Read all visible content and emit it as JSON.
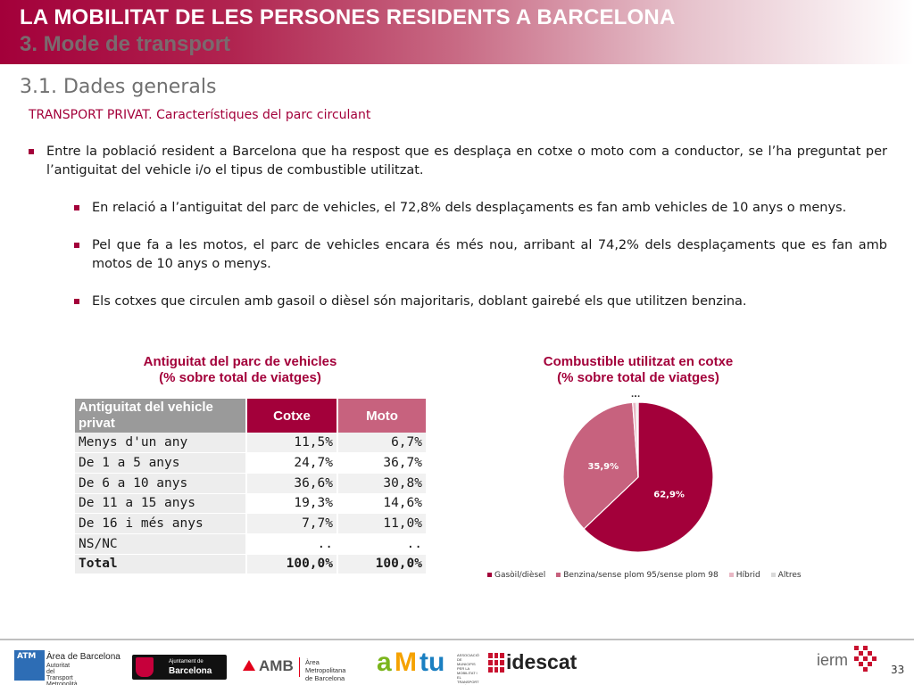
{
  "header": {
    "title": "LA MOBILITAT DE LES PERSONES RESIDENTS A BARCELONA",
    "subtitle": "3. Mode de transport"
  },
  "section": "3.1. Dades generals",
  "subsection": "TRANSPORT PRIVAT. Característiques del parc circulant",
  "bullets": {
    "main": "Entre la població resident a Barcelona que ha respost que es desplaça en cotxe o moto com a conductor, se l’ha preguntat per l’antiguitat del vehicle i/o el tipus de combustible utilitzat.",
    "sub": [
      "En relació a l’antiguitat del parc de vehicles, el 72,8% dels desplaçaments es fan amb vehicles de 10 anys o menys.",
      "Pel que fa a les motos, el parc de vehicles encara és més nou, arribant al 74,2% dels desplaçaments que es fan amb motos de 10 anys o menys.",
      "Els cotxes que circulen amb gasoil o dièsel són majoritaris, doblant gairebé els que utilitzen benzina."
    ]
  },
  "table": {
    "title": "Antiguitat del parc de vehicles\n(% sobre total de viatges)",
    "headers": [
      "Antiguitat del vehicle privat",
      "Cotxe",
      "Moto"
    ],
    "rows": [
      [
        "Menys d'un any",
        "11,5%",
        "6,7%"
      ],
      [
        "De 1 a 5 anys",
        "24,7%",
        "36,7%"
      ],
      [
        "De 6 a 10 anys",
        "36,6%",
        "30,8%"
      ],
      [
        "De 11 a 15 anys",
        "19,3%",
        "14,6%"
      ],
      [
        "De 16 i més anys",
        "7,7%",
        "11,0%"
      ],
      [
        "NS/NC",
        "..",
        ".."
      ]
    ],
    "total": [
      "Total",
      "100,0%",
      "100,0%"
    ]
  },
  "chart_data": {
    "type": "pie",
    "title": "Combustible utilitzat en cotxe\n(% sobre total de viatges)",
    "categories": [
      "Gasòil/dièsel",
      "Benzina/sense plom 95/sense plom 98",
      "Híbrid",
      "Altres"
    ],
    "values": [
      62.9,
      35.9,
      0.8,
      0.4
    ],
    "labels": [
      "62,9%",
      "35,9%",
      "..",
      ".."
    ],
    "colors": [
      "#a3003a",
      "#c7627e",
      "#e8b7c4",
      "#d9d9d9"
    ],
    "legend": "bottom"
  },
  "footer": {
    "page_number": "33",
    "logos": {
      "atm_box": "ATM",
      "atm_name": "Àrea de Barcelona",
      "atm_desc": "Autoritat del Transport\nMetropolità",
      "ajuntament_small": "Ajuntament de",
      "ajuntament_name": "Barcelona",
      "amb_name": "AMB",
      "amb_desc": "Àrea Metropolitana\nde Barcelona",
      "amtu_a": "a",
      "amtu_m": "M",
      "amtu_tu": "tu",
      "amtu_desc": "ASSOCIACIÓ\nDE MUNICIPIS\nPER LA MOBILITAT I\nEL TRANSPORT URBÀ",
      "idescat_name": "idescat",
      "ierm_name": "ierm"
    }
  }
}
